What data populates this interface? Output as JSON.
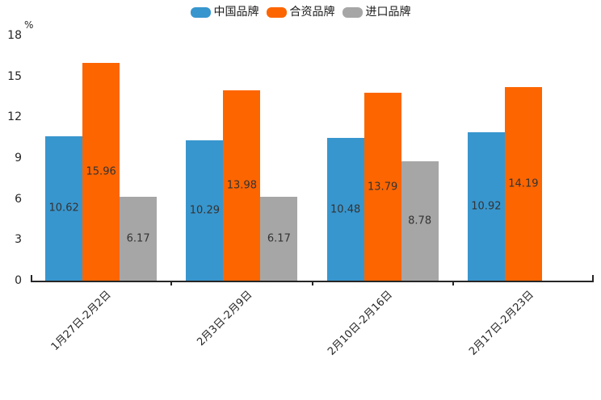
{
  "chart_data": {
    "type": "bar",
    "unit_label": "%",
    "categories": [
      "1月27日-2月2日",
      "2月3日-2月9日",
      "2月10日-2月16日",
      "2月17日-2月23日"
    ],
    "series": [
      {
        "id": "china-brand",
        "name": "中国品牌",
        "color": "#3896CE",
        "values": [
          10.62,
          10.29,
          10.48,
          10.92
        ]
      },
      {
        "id": "joint-venture-brand",
        "name": "合资品牌",
        "color": "#FD6500",
        "values": [
          15.96,
          13.98,
          13.79,
          14.19
        ]
      },
      {
        "id": "import-brand",
        "name": "进口品牌",
        "color": "#A6A6A6",
        "values": [
          6.17,
          6.17,
          8.78,
          null
        ]
      }
    ],
    "ylim": [
      0,
      18
    ],
    "yticks": [
      0,
      3,
      6,
      9,
      12,
      15,
      18
    ],
    "legend_position": "top-center",
    "grid": false,
    "value_labels": true,
    "axis_color": "#262626",
    "value_label_color": "#333333"
  }
}
